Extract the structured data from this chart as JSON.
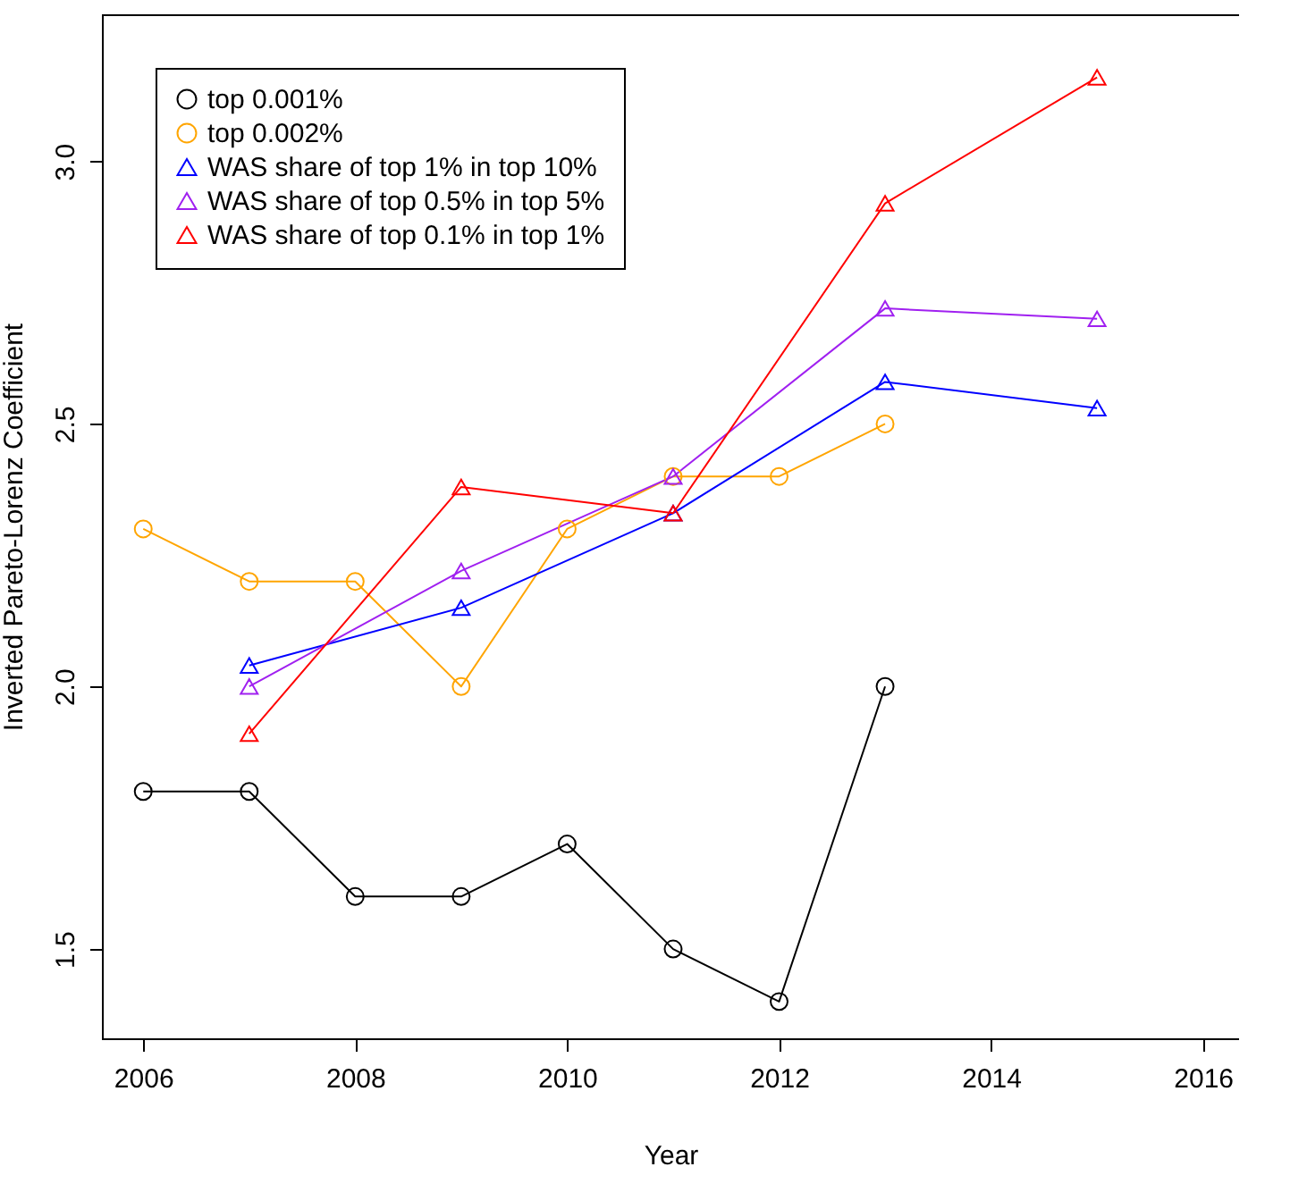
{
  "chart_data": {
    "type": "line",
    "xlabel": "Year",
    "ylabel": "Inverted Pareto-Lorenz Coefficient",
    "xlim": [
      2005.61,
      2016.34
    ],
    "ylim": [
      1.33,
      3.28
    ],
    "xticks": [
      2006,
      2008,
      2010,
      2012,
      2014,
      2016
    ],
    "yticks": [
      1.5,
      {
        "value": 2,
        "label": "2.0"
      },
      2.5,
      {
        "value": 3,
        "label": "3.0"
      }
    ],
    "legend": "top left",
    "series": [
      {
        "name": "top 0.001%",
        "color": "#000000",
        "marker": "circle",
        "x": [
          2006,
          2007,
          2008,
          2009,
          2010,
          2011,
          2012,
          2013
        ],
        "values": [
          1.8,
          1.8,
          1.6,
          1.6,
          1.7,
          1.5,
          1.4,
          2.0
        ]
      },
      {
        "name": "top 0.002%",
        "color": "#ffa500",
        "marker": "circle",
        "x": [
          2006,
          2007,
          2008,
          2009,
          2010,
          2011,
          2012,
          2013
        ],
        "values": [
          2.3,
          2.2,
          2.2,
          2.0,
          2.3,
          2.4,
          2.4,
          2.5
        ]
      },
      {
        "name": "WAS share of top 1% in top 10%",
        "color": "#0000ff",
        "marker": "triangle",
        "x": [
          2007,
          2009,
          2011,
          2013,
          2015
        ],
        "values": [
          2.04,
          2.15,
          2.33,
          2.58,
          2.53
        ]
      },
      {
        "name": "WAS share of top 0.5% in top 5%",
        "color": "#a020f0",
        "marker": "triangle",
        "x": [
          2007,
          2009,
          2011,
          2013,
          2015
        ],
        "values": [
          2.0,
          2.22,
          2.4,
          2.72,
          2.7
        ]
      },
      {
        "name": "WAS share of top 0.1% in top 1%",
        "color": "#ff0000",
        "marker": "triangle",
        "x": [
          2007,
          2009,
          2011,
          2013,
          2015
        ],
        "values": [
          1.91,
          2.38,
          2.33,
          2.92,
          3.16
        ]
      }
    ]
  }
}
